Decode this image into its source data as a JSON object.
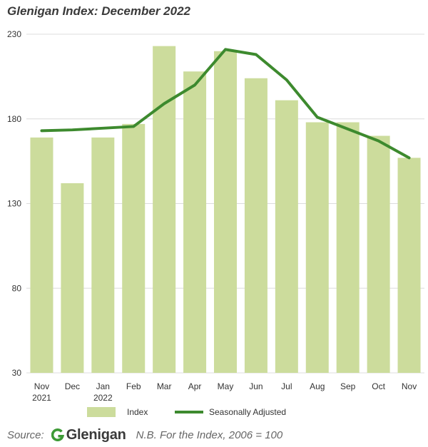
{
  "title": "Glenigan Index: December 2022",
  "chart_data": {
    "type": "bar",
    "categories": [
      "Nov\n2021",
      "Dec",
      "Jan\n2022",
      "Feb",
      "Mar",
      "Apr",
      "May",
      "Jun",
      "Jul",
      "Aug",
      "Sep",
      "Oct",
      "Nov"
    ],
    "series": [
      {
        "name": "Index",
        "type": "bar",
        "color": "#ccdc9c",
        "values": [
          169,
          142,
          169,
          177,
          223,
          208,
          220,
          204,
          191,
          178,
          178,
          170,
          157
        ]
      },
      {
        "name": "Seasonally Adjusted",
        "type": "line",
        "color": "#3d8a2e",
        "values": [
          173,
          173.5,
          174.5,
          175.5,
          189,
          200,
          221,
          218,
          203,
          181,
          174,
          167,
          157
        ]
      }
    ],
    "ylim": [
      30,
      230
    ],
    "yticks": [
      30,
      80,
      130,
      180,
      230
    ],
    "grid": true,
    "legend": "bottom"
  },
  "footer": {
    "source_label": "Source:",
    "logo_text": "Glenigan",
    "note": "N.B. For the Index, 2006 = 100"
  }
}
